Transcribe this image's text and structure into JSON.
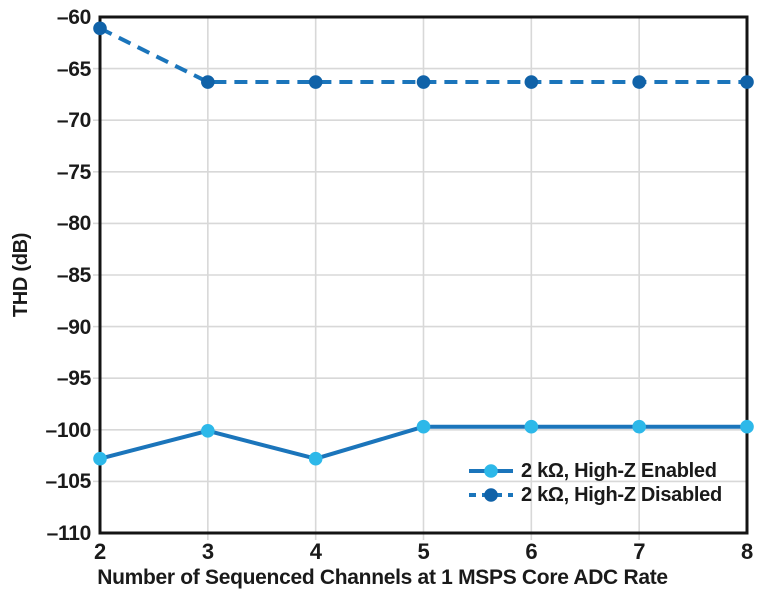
{
  "chart_data": {
    "type": "line",
    "title": "",
    "xlabel": "Number of Sequenced Channels at 1 MSPS Core ADC Rate",
    "ylabel": "THD (dB)",
    "x": [
      2,
      3,
      4,
      5,
      6,
      7,
      8
    ],
    "xlim": [
      2,
      8
    ],
    "ylim": [
      -110,
      -60
    ],
    "xtick_values": [
      2,
      3,
      4,
      5,
      6,
      7,
      8
    ],
    "xtick_labels": [
      "2",
      "3",
      "4",
      "5",
      "6",
      "7",
      "8"
    ],
    "ytick_values": [
      -60,
      -65,
      -70,
      -75,
      -80,
      -85,
      -90,
      -95,
      -100,
      -105,
      -110
    ],
    "ytick_labels": [
      "–60",
      "–65",
      "–70",
      "–75",
      "–80",
      "–85",
      "–90",
      "–95",
      "–100",
      "–105",
      "–110"
    ],
    "grid": true,
    "legend_position": "lower right",
    "series": [
      {
        "name": "2 kΩ, High-Z Enabled",
        "style": "solid",
        "line_color": "#1b75bb",
        "marker_color": "#2db8e9",
        "values": [
          -102.8,
          -100.1,
          -102.8,
          -99.7,
          -99.7,
          -99.7,
          -99.7
        ]
      },
      {
        "name": "2 kΩ, High-Z Disabled",
        "style": "dashed",
        "line_color": "#1b75bb",
        "marker_color": "#1062a8",
        "values": [
          -61.1,
          -66.3,
          -66.3,
          -66.3,
          -66.3,
          -66.3,
          -66.3
        ]
      }
    ]
  },
  "colors": {
    "grid": "#d8d8d8",
    "border": "#141414",
    "text": "#1a1a1a",
    "background": "#ffffff"
  }
}
